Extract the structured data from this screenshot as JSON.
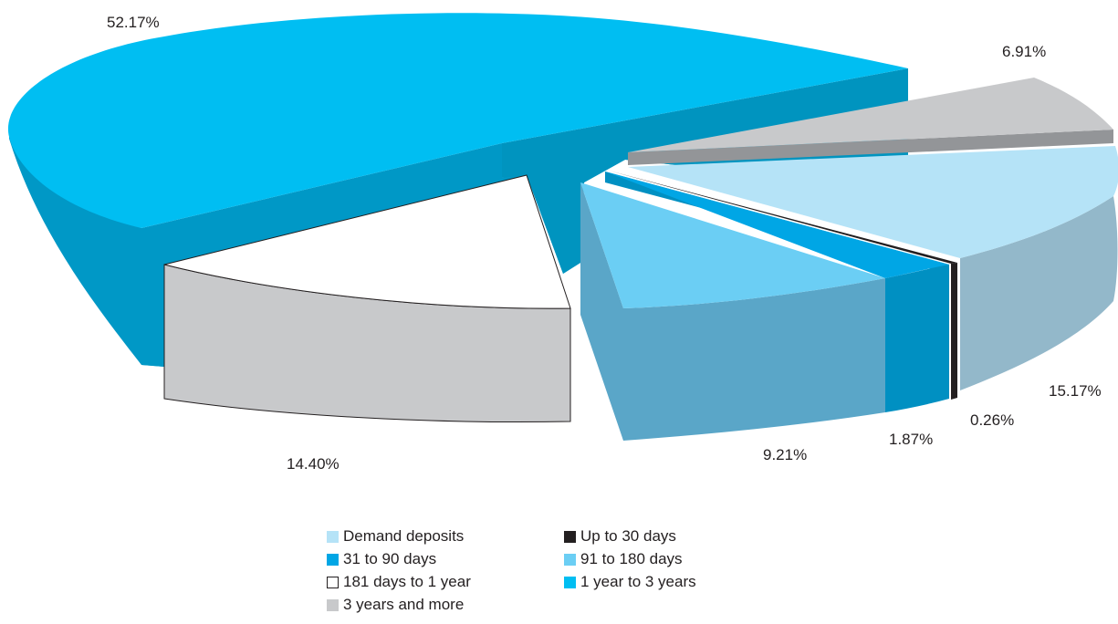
{
  "chart_data": {
    "type": "pie",
    "title": "",
    "style": "3d-exploded",
    "legend_position": "bottom",
    "slices": [
      {
        "label": "Demand deposits",
        "value": 15.17,
        "display": "15.17%",
        "color": "#b5e3f7",
        "side_color": "#93b8ca"
      },
      {
        "label": "Up to 30 days",
        "value": 0.26,
        "display": "0.26%",
        "color": "#231f20",
        "side_color": "#231f20"
      },
      {
        "label": "31 to 90 days",
        "value": 1.87,
        "display": "1.87%",
        "color": "#00a6e5",
        "side_color": "#0090c2"
      },
      {
        "label": "91 to 180 days",
        "value": 9.21,
        "display": "9.21%",
        "color": "#6bcef4",
        "side_color": "#5aa6c8"
      },
      {
        "label": "181 days to 1 year",
        "value": 14.4,
        "display": "14.40%",
        "color": "#ffffff",
        "side_color": "#c8c9cb"
      },
      {
        "label": "1 year to 3 years",
        "value": 52.17,
        "display": "52.17%",
        "color": "#00bef2",
        "side_color": "#0098c6"
      },
      {
        "label": "3 years and more",
        "value": 6.91,
        "display": "6.91%",
        "color": "#c8c9cb",
        "side_color": "#939598"
      }
    ]
  },
  "legend": [
    {
      "label": "Demand deposits",
      "color": "#b5e3f7",
      "border": "#b5e3f7"
    },
    {
      "label": "Up to 30 days",
      "color": "#231f20",
      "border": "#231f20"
    },
    {
      "label": "31 to 90 days",
      "color": "#00a6e5",
      "border": "#00a6e5"
    },
    {
      "label": "91 to 180 days",
      "color": "#6bcef4",
      "border": "#6bcef4"
    },
    {
      "label": "181 days to 1 year",
      "color": "#ffffff",
      "border": "#231f20"
    },
    {
      "label": "1 year to 3 years",
      "color": "#00bef2",
      "border": "#00bef2"
    },
    {
      "label": "3 years and more",
      "color": "#c8c9cb",
      "border": "#c8c9cb"
    }
  ]
}
